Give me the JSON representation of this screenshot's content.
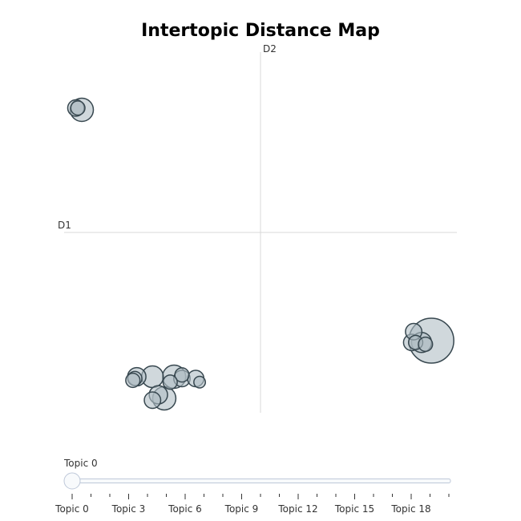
{
  "chart_data": {
    "type": "scatter",
    "title": "Intertopic Distance Map",
    "axis_labels": {
      "x": "D1",
      "y": "D2"
    },
    "grid": false,
    "xlim": [
      -1,
      1
    ],
    "ylim": [
      -1,
      1
    ],
    "colors": {
      "bubble_fill": "#b0bec5",
      "bubble_stroke": "#37474f",
      "axis_line": "#d9d9d9"
    },
    "topics": [
      {
        "topic": 0,
        "x": 0.87,
        "y": -0.6,
        "size": 30
      },
      {
        "topic": 1,
        "x": 0.77,
        "y": -0.61,
        "size": 4
      },
      {
        "topic": 2,
        "x": 0.78,
        "y": -0.55,
        "size": 4
      },
      {
        "topic": 3,
        "x": 0.82,
        "y": -0.61,
        "size": 6
      },
      {
        "topic": 4,
        "x": 0.79,
        "y": -0.61,
        "size": 3
      },
      {
        "topic": 5,
        "x": 0.84,
        "y": -0.62,
        "size": 3
      },
      {
        "topic": 6,
        "x": -0.91,
        "y": 0.68,
        "size": 8
      },
      {
        "topic": 7,
        "x": -0.94,
        "y": 0.69,
        "size": 4
      },
      {
        "topic": 8,
        "x": -0.93,
        "y": 0.69,
        "size": 3
      },
      {
        "topic": 9,
        "x": -0.55,
        "y": -0.8,
        "size": 7
      },
      {
        "topic": 10,
        "x": -0.44,
        "y": -0.8,
        "size": 8
      },
      {
        "topic": 11,
        "x": -0.63,
        "y": -0.8,
        "size": 5
      },
      {
        "topic": 12,
        "x": -0.64,
        "y": -0.81,
        "size": 3
      },
      {
        "topic": 13,
        "x": -0.65,
        "y": -0.82,
        "size": 3
      },
      {
        "topic": 14,
        "x": -0.4,
        "y": -0.81,
        "size": 4
      },
      {
        "topic": 15,
        "x": -0.4,
        "y": -0.79,
        "size": 3
      },
      {
        "topic": 16,
        "x": -0.46,
        "y": -0.83,
        "size": 3
      },
      {
        "topic": 17,
        "x": -0.33,
        "y": -0.81,
        "size": 4
      },
      {
        "topic": 18,
        "x": -0.31,
        "y": -0.83,
        "size": 2
      },
      {
        "topic": 19,
        "x": -0.49,
        "y": -0.92,
        "size": 8
      },
      {
        "topic": 20,
        "x": -0.52,
        "y": -0.9,
        "size": 5
      },
      {
        "topic": 21,
        "x": -0.55,
        "y": -0.93,
        "size": 4
      }
    ]
  },
  "slider": {
    "current_label": "Topic 0",
    "value": 0,
    "min": 0,
    "max": 20,
    "tick_labels": [
      {
        "value": 0,
        "label": "Topic 0"
      },
      {
        "value": 3,
        "label": "Topic 3"
      },
      {
        "value": 6,
        "label": "Topic 6"
      },
      {
        "value": 9,
        "label": "Topic 9"
      },
      {
        "value": 12,
        "label": "Topic 12"
      },
      {
        "value": 15,
        "label": "Topic 15"
      },
      {
        "value": 18,
        "label": "Topic 18"
      }
    ]
  }
}
